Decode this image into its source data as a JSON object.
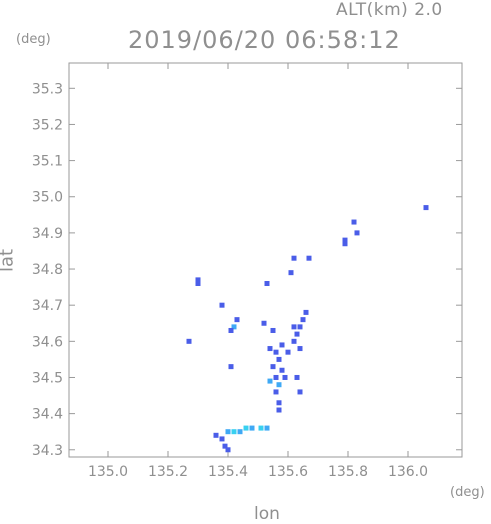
{
  "header": {
    "altitude_label": "ALT(km) 2.0",
    "datetime": "2019/06/20 06:58:12"
  },
  "axes": {
    "y_unit": "(deg)",
    "x_unit": "(deg)",
    "x_title": "lon",
    "y_title": "lat",
    "x_ticks": [
      "135.0",
      "135.2",
      "135.4",
      "135.6",
      "135.8",
      "136.0"
    ],
    "x_tick_values": [
      135.0,
      135.2,
      135.4,
      135.6,
      135.8,
      136.0
    ],
    "y_ticks": [
      "34.3",
      "34.4",
      "34.5",
      "34.6",
      "34.7",
      "34.8",
      "34.9",
      "35.0",
      "35.1",
      "35.2",
      "35.3"
    ],
    "y_tick_values": [
      34.3,
      34.4,
      34.5,
      34.6,
      34.7,
      34.8,
      34.9,
      35.0,
      35.1,
      35.2,
      35.3
    ],
    "x_range": [
      134.87,
      136.18
    ],
    "y_range": [
      34.28,
      35.37
    ]
  },
  "colors": {
    "frame": "#9a9a9a",
    "echo_main": "#4a5de8",
    "echo_light": "#3fa9f5",
    "echo_cyan": "#38d0f0"
  },
  "echoes": [
    {
      "lon": 135.82,
      "lat": 34.93,
      "color": "echo_main"
    },
    {
      "lon": 135.83,
      "lat": 34.9,
      "color": "echo_main"
    },
    {
      "lon": 135.79,
      "lat": 34.88,
      "color": "echo_main"
    },
    {
      "lon": 135.79,
      "lat": 34.87,
      "color": "echo_main"
    },
    {
      "lon": 136.06,
      "lat": 34.97,
      "color": "echo_main"
    },
    {
      "lon": 135.62,
      "lat": 34.83,
      "color": "echo_main"
    },
    {
      "lon": 135.61,
      "lat": 34.79,
      "color": "echo_main"
    },
    {
      "lon": 135.67,
      "lat": 34.83,
      "color": "echo_main"
    },
    {
      "lon": 135.53,
      "lat": 34.76,
      "color": "echo_main"
    },
    {
      "lon": 135.3,
      "lat": 34.77,
      "color": "echo_main"
    },
    {
      "lon": 135.3,
      "lat": 34.76,
      "color": "echo_main"
    },
    {
      "lon": 135.66,
      "lat": 34.68,
      "color": "echo_main"
    },
    {
      "lon": 135.65,
      "lat": 34.66,
      "color": "echo_main"
    },
    {
      "lon": 135.64,
      "lat": 34.64,
      "color": "echo_main"
    },
    {
      "lon": 135.63,
      "lat": 34.62,
      "color": "echo_main"
    },
    {
      "lon": 135.62,
      "lat": 34.6,
      "color": "echo_main"
    },
    {
      "lon": 135.64,
      "lat": 34.58,
      "color": "echo_main"
    },
    {
      "lon": 135.6,
      "lat": 34.57,
      "color": "echo_main"
    },
    {
      "lon": 135.58,
      "lat": 34.59,
      "color": "echo_main"
    },
    {
      "lon": 135.56,
      "lat": 34.57,
      "color": "echo_main"
    },
    {
      "lon": 135.54,
      "lat": 34.58,
      "color": "echo_main"
    },
    {
      "lon": 135.57,
      "lat": 34.55,
      "color": "echo_main"
    },
    {
      "lon": 135.55,
      "lat": 34.53,
      "color": "echo_main"
    },
    {
      "lon": 135.58,
      "lat": 34.52,
      "color": "echo_main"
    },
    {
      "lon": 135.56,
      "lat": 34.5,
      "color": "echo_main"
    },
    {
      "lon": 135.54,
      "lat": 34.49,
      "color": "echo_light"
    },
    {
      "lon": 135.57,
      "lat": 34.48,
      "color": "echo_light"
    },
    {
      "lon": 135.56,
      "lat": 34.46,
      "color": "echo_main"
    },
    {
      "lon": 135.59,
      "lat": 34.5,
      "color": "echo_main"
    },
    {
      "lon": 135.63,
      "lat": 34.5,
      "color": "echo_main"
    },
    {
      "lon": 135.64,
      "lat": 34.46,
      "color": "echo_main"
    },
    {
      "lon": 135.57,
      "lat": 34.43,
      "color": "echo_main"
    },
    {
      "lon": 135.57,
      "lat": 34.41,
      "color": "echo_main"
    },
    {
      "lon": 135.43,
      "lat": 34.66,
      "color": "echo_main"
    },
    {
      "lon": 135.42,
      "lat": 34.64,
      "color": "echo_light"
    },
    {
      "lon": 135.41,
      "lat": 34.63,
      "color": "echo_main"
    },
    {
      "lon": 135.52,
      "lat": 34.65,
      "color": "echo_main"
    },
    {
      "lon": 135.55,
      "lat": 34.63,
      "color": "echo_main"
    },
    {
      "lon": 135.62,
      "lat": 34.64,
      "color": "echo_main"
    },
    {
      "lon": 135.27,
      "lat": 34.6,
      "color": "echo_main"
    },
    {
      "lon": 135.41,
      "lat": 34.53,
      "color": "echo_main"
    },
    {
      "lon": 135.38,
      "lat": 34.7,
      "color": "echo_main"
    },
    {
      "lon": 135.36,
      "lat": 34.34,
      "color": "echo_main"
    },
    {
      "lon": 135.38,
      "lat": 34.33,
      "color": "echo_main"
    },
    {
      "lon": 135.4,
      "lat": 34.35,
      "color": "echo_light"
    },
    {
      "lon": 135.42,
      "lat": 34.35,
      "color": "echo_cyan"
    },
    {
      "lon": 135.44,
      "lat": 34.35,
      "color": "echo_light"
    },
    {
      "lon": 135.46,
      "lat": 34.36,
      "color": "echo_cyan"
    },
    {
      "lon": 135.48,
      "lat": 34.36,
      "color": "echo_light"
    },
    {
      "lon": 135.51,
      "lat": 34.36,
      "color": "echo_cyan"
    },
    {
      "lon": 135.53,
      "lat": 34.36,
      "color": "echo_light"
    },
    {
      "lon": 135.39,
      "lat": 34.31,
      "color": "echo_main"
    },
    {
      "lon": 135.4,
      "lat": 34.3,
      "color": "echo_main"
    }
  ]
}
